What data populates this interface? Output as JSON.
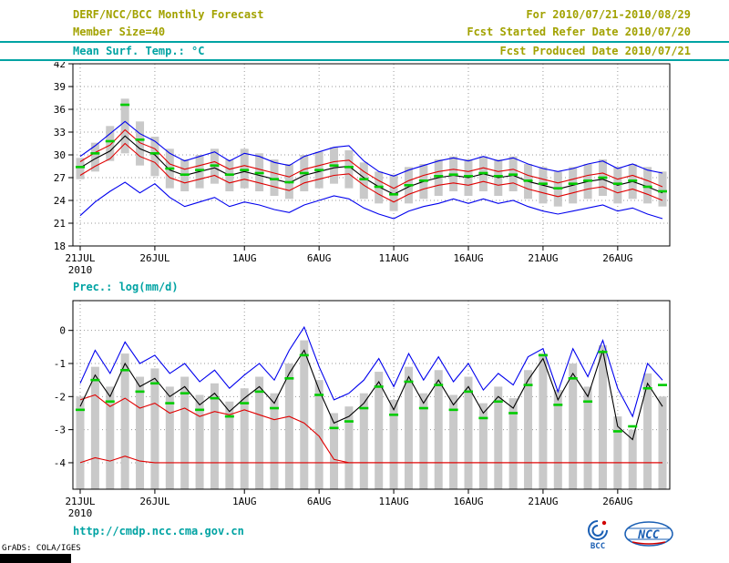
{
  "header": {
    "title": "DERF/NCC/BCC Monthly Forecast",
    "member_size": "Member Size=40",
    "temp_label": "Mean Surf. Temp.: °C",
    "for_range": "For 2010/07/21-2010/08/29",
    "fcst_started": "Fcst Started Refer Date 2010/07/20",
    "fcst_produced": "Fcst Produced Date 2010/07/21"
  },
  "footer": {
    "url": "http://cmdp.ncc.cma.gov.cn",
    "grads_credit": "GrADS: COLA/IGES",
    "bcc_logo_label": "BCC",
    "ncc_logo_label": "NCC"
  },
  "colors": {
    "olive": "#a2a200",
    "teal": "#00a3a3",
    "bar": "#c9c9c9",
    "green": "#00cc00",
    "blue": "#0000ee",
    "red": "#e00000",
    "black": "#000000",
    "grid": "#9a9a9a"
  },
  "chart_data": [
    {
      "type": "line",
      "title": "Mean Surf. Temp.: °C",
      "n_days": 40,
      "x_tick_labels": [
        "21JUL",
        "26JUL",
        "1AUG",
        "6AUG",
        "11AUG",
        "16AUG",
        "21AUG",
        "26AUG"
      ],
      "x_tick_days": [
        0,
        5,
        11,
        16,
        21,
        26,
        31,
        36
      ],
      "x_sub_label": "2010",
      "ylim": [
        18,
        42
      ],
      "yticks": [
        42,
        39,
        36,
        33,
        30,
        27,
        24,
        21,
        18
      ],
      "grid": true,
      "legend": "gray bars = ensemble spread, green = best members, blue = max/min, red = quartiles, black = ensemble mean",
      "bars": {
        "top": [
          29.6,
          31.6,
          33.8,
          37.4,
          34.4,
          32.4,
          30.8,
          29.4,
          30.0,
          30.8,
          29.4,
          30.8,
          30.2,
          29.4,
          28.8,
          30.0,
          30.4,
          31.0,
          30.6,
          29.0,
          27.8,
          27.4,
          28.4,
          28.8,
          29.4,
          29.8,
          29.4,
          29.8,
          29.4,
          29.8,
          28.8,
          28.4,
          27.8,
          28.4,
          28.8,
          29.4,
          28.4,
          28.8,
          28.4,
          27.8
        ],
        "bottom": [
          26.8,
          27.8,
          29.2,
          30.2,
          28.6,
          27.2,
          25.6,
          25.2,
          25.6,
          26.2,
          25.2,
          25.6,
          25.2,
          24.6,
          24.2,
          25.2,
          25.6,
          26.2,
          25.6,
          24.2,
          23.6,
          22.6,
          23.6,
          24.2,
          24.6,
          25.2,
          24.6,
          25.2,
          24.6,
          25.2,
          24.2,
          23.6,
          23.2,
          23.6,
          24.2,
          24.6,
          23.6,
          24.2,
          23.6,
          23.2
        ]
      },
      "markers": {
        "name": "median-marker",
        "color": "green",
        "values": [
          28.4,
          30.2,
          31.8,
          36.6,
          32.0,
          30.2,
          28.2,
          27.4,
          28.0,
          28.6,
          27.4,
          28.0,
          27.6,
          26.8,
          26.4,
          27.6,
          28.0,
          28.6,
          28.4,
          26.8,
          25.8,
          24.8,
          26.0,
          26.6,
          27.2,
          27.4,
          27.2,
          27.6,
          27.2,
          27.4,
          26.6,
          26.2,
          25.6,
          26.2,
          26.6,
          27.0,
          26.2,
          26.6,
          25.8,
          25.2
        ]
      },
      "series": [
        {
          "name": "ensemble-max",
          "color": "blue",
          "values": [
            29.8,
            31.2,
            32.8,
            34.4,
            32.8,
            31.8,
            30.2,
            29.2,
            29.8,
            30.4,
            29.2,
            30.2,
            29.8,
            29.0,
            28.6,
            29.8,
            30.4,
            31.0,
            31.2,
            29.2,
            27.8,
            27.2,
            28.0,
            28.6,
            29.2,
            29.6,
            29.2,
            29.8,
            29.2,
            29.6,
            28.8,
            28.2,
            27.8,
            28.2,
            28.8,
            29.2,
            28.2,
            28.8,
            28.0,
            27.6
          ]
        },
        {
          "name": "ensemble-min",
          "color": "blue",
          "values": [
            22.0,
            23.8,
            25.2,
            26.4,
            25.0,
            26.2,
            24.4,
            23.2,
            23.8,
            24.4,
            23.2,
            23.8,
            23.4,
            22.8,
            22.4,
            23.4,
            24.0,
            24.6,
            24.2,
            23.0,
            22.2,
            21.6,
            22.6,
            23.2,
            23.6,
            24.2,
            23.6,
            24.2,
            23.6,
            24.0,
            23.2,
            22.6,
            22.2,
            22.6,
            23.0,
            23.4,
            22.6,
            23.0,
            22.2,
            21.6
          ]
        },
        {
          "name": "upper-quartile",
          "color": "red",
          "values": [
            29.1,
            30.3,
            31.3,
            33.3,
            31.6,
            30.8,
            28.8,
            28.1,
            28.6,
            29.1,
            28.1,
            28.6,
            28.1,
            27.6,
            27.1,
            28.1,
            28.6,
            29.1,
            29.3,
            27.8,
            26.6,
            25.6,
            26.6,
            27.3,
            27.8,
            28.1,
            27.8,
            28.3,
            27.8,
            28.1,
            27.3,
            26.8,
            26.3,
            26.8,
            27.3,
            27.6,
            26.8,
            27.3,
            26.6,
            25.8
          ]
        },
        {
          "name": "lower-quartile",
          "color": "red",
          "values": [
            27.3,
            28.5,
            29.5,
            31.5,
            29.8,
            29.0,
            27.0,
            26.3,
            26.8,
            27.3,
            26.3,
            26.8,
            26.3,
            25.8,
            25.3,
            26.3,
            26.8,
            27.3,
            27.5,
            26.0,
            24.8,
            23.8,
            24.8,
            25.5,
            26.0,
            26.3,
            26.0,
            26.5,
            26.0,
            26.3,
            25.5,
            25.0,
            24.5,
            25.0,
            25.5,
            25.8,
            25.0,
            25.5,
            24.8,
            24.0
          ]
        },
        {
          "name": "ensemble-mean",
          "color": "black",
          "values": [
            28.3,
            29.5,
            30.5,
            32.5,
            30.8,
            30.0,
            28.0,
            27.3,
            27.8,
            28.3,
            27.3,
            27.8,
            27.3,
            26.8,
            26.3,
            27.3,
            27.8,
            28.3,
            28.5,
            27.0,
            25.8,
            24.8,
            25.8,
            26.5,
            27.0,
            27.3,
            27.0,
            27.5,
            27.0,
            27.3,
            26.5,
            26.0,
            25.5,
            26.0,
            26.5,
            26.8,
            26.0,
            26.5,
            25.8,
            25.0
          ]
        }
      ]
    },
    {
      "type": "line",
      "title": "Prec.: log(mm/d)",
      "n_days": 40,
      "x_tick_labels": [
        "21JUL",
        "26JUL",
        "1AUG",
        "6AUG",
        "11AUG",
        "16AUG",
        "21AUG",
        "26AUG"
      ],
      "x_tick_days": [
        0,
        5,
        11,
        16,
        21,
        26,
        31,
        36
      ],
      "x_sub_label": "2010",
      "ylim": [
        -4.8,
        0.9
      ],
      "yticks": [
        0,
        -1,
        -2,
        -3,
        -4
      ],
      "grid": true,
      "legend": "gray bars = ensemble spread, green = best members, blue = max, red = quartiles, black = ensemble mean",
      "bars": {
        "top": [
          -2.0,
          -1.1,
          -1.7,
          -0.7,
          -1.4,
          -1.15,
          -1.7,
          -1.4,
          -1.95,
          -1.6,
          -2.15,
          -1.75,
          -1.4,
          -1.9,
          -1.0,
          -0.3,
          -1.5,
          -2.5,
          -2.3,
          -1.9,
          -1.25,
          -2.1,
          -1.1,
          -1.9,
          -1.2,
          -1.95,
          -1.4,
          -2.2,
          -1.7,
          -2.05,
          -1.2,
          -0.7,
          -1.8,
          -1.0,
          -1.7,
          -0.45,
          -2.6,
          -3.0,
          -1.3,
          -2.0
        ],
        "bottom": -4.8
      },
      "markers": {
        "name": "median-marker",
        "color": "green",
        "values": [
          -2.4,
          -1.5,
          -2.15,
          -1.2,
          -1.85,
          -1.6,
          -2.2,
          -1.9,
          -2.4,
          -2.05,
          -2.6,
          -2.2,
          -1.85,
          -2.35,
          -1.45,
          -0.75,
          -1.95,
          -2.95,
          -2.75,
          -2.35,
          -1.7,
          -2.55,
          -1.55,
          -2.35,
          -1.65,
          -2.4,
          -1.85,
          -2.65,
          -2.15,
          -2.5,
          -1.65,
          -0.75,
          -2.25,
          -1.45,
          -2.15,
          -0.65,
          -3.05,
          -2.9,
          -1.75,
          -1.65
        ]
      },
      "series": [
        {
          "name": "ensemble-max",
          "color": "blue",
          "values": [
            -1.6,
            -0.6,
            -1.3,
            -0.35,
            -1.0,
            -0.75,
            -1.3,
            -1.0,
            -1.55,
            -1.2,
            -1.75,
            -1.35,
            -1.0,
            -1.5,
            -0.6,
            0.1,
            -1.1,
            -2.1,
            -1.9,
            -1.5,
            -0.85,
            -1.7,
            -0.7,
            -1.5,
            -0.8,
            -1.55,
            -1.0,
            -1.8,
            -1.3,
            -1.65,
            -0.8,
            -0.55,
            -1.85,
            -0.55,
            -1.4,
            -0.3,
            -1.75,
            -2.6,
            -1.0,
            -1.5
          ]
        },
        {
          "name": "upper-quartile",
          "color": "red",
          "values": [
            -2.1,
            -1.95,
            -2.3,
            -2.05,
            -2.35,
            -2.2,
            -2.5,
            -2.35,
            -2.6,
            -2.45,
            -2.55,
            -2.4,
            -2.55,
            -2.7,
            -2.6,
            -2.8,
            -3.2,
            -3.9,
            -4.0,
            -4.0,
            -4.0,
            -4.0,
            -4.0,
            -4.0,
            -4.0,
            -4.0,
            -4.0,
            -4.0,
            -4.0,
            -4.0,
            -4.0,
            -4.0,
            -4.0,
            -4.0,
            -4.0,
            -4.0,
            -4.0,
            -4.0,
            -4.0,
            -4.0
          ]
        },
        {
          "name": "lower-quartile",
          "color": "red",
          "values": [
            -4.0,
            -3.85,
            -3.95,
            -3.8,
            -3.95,
            -4.0,
            -4.0,
            -4.0,
            -4.0,
            -4.0,
            -4.0,
            -4.0,
            -4.0,
            -4.0,
            -4.0,
            -4.0,
            -4.0,
            -4.0,
            -4.0,
            -4.0,
            -4.0,
            -4.0,
            -4.0,
            -4.0,
            -4.0,
            -4.0,
            -4.0,
            -4.0,
            -4.0,
            -4.0,
            -4.0,
            -4.0,
            -4.0,
            -4.0,
            -4.0,
            -4.0,
            -4.0,
            -4.0,
            -4.0,
            -4.0
          ]
        },
        {
          "name": "ensemble-mean",
          "color": "black",
          "values": [
            -2.3,
            -1.35,
            -2.0,
            -1.0,
            -1.7,
            -1.45,
            -2.0,
            -1.7,
            -2.25,
            -1.9,
            -2.45,
            -2.05,
            -1.7,
            -2.2,
            -1.3,
            -0.6,
            -1.8,
            -2.8,
            -2.6,
            -2.2,
            -1.55,
            -2.4,
            -1.4,
            -2.2,
            -1.5,
            -2.25,
            -1.7,
            -2.5,
            -2.0,
            -2.35,
            -1.5,
            -0.85,
            -2.1,
            -1.3,
            -2.0,
            -0.6,
            -2.9,
            -3.3,
            -1.6,
            -2.3
          ]
        }
      ]
    }
  ]
}
